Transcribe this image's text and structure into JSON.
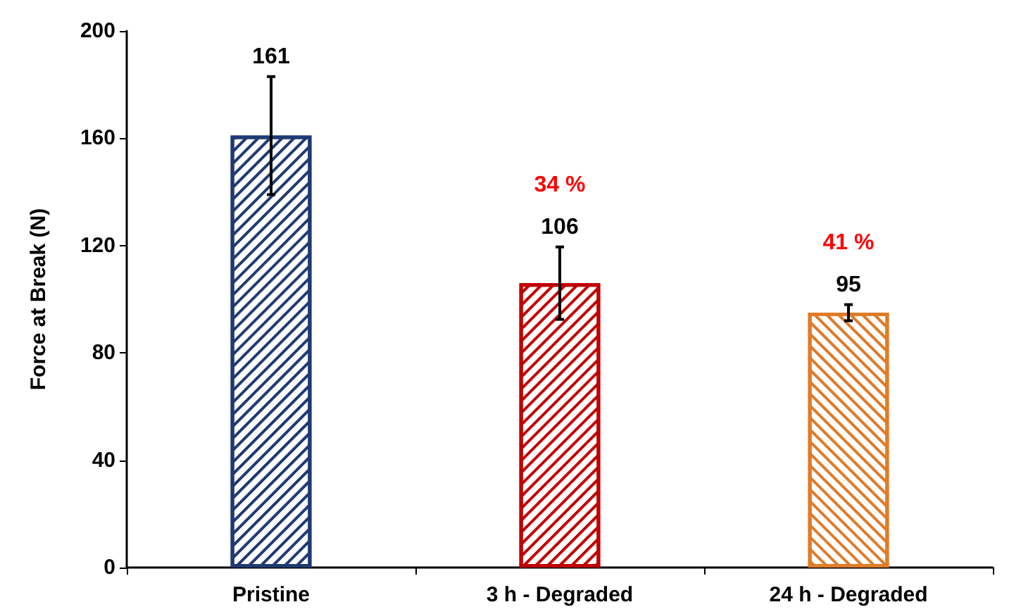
{
  "chart_data": {
    "type": "bar",
    "ylabel": "Force at Break (N)",
    "categories": [
      "Pristine",
      "3 h - Degraded",
      "24 h - Degraded"
    ],
    "values": [
      161,
      106,
      95
    ],
    "colors": [
      "#1f3a73",
      "#c00000",
      "#e07b28"
    ],
    "errors": [
      22,
      13.5,
      3
    ],
    "data_labels": true,
    "annotations": [
      "34 %",
      "41 %"
    ],
    "ylim": [
      0,
      200
    ],
    "yticks": [
      0,
      40,
      80,
      120,
      160,
      200
    ],
    "grid": false
  }
}
